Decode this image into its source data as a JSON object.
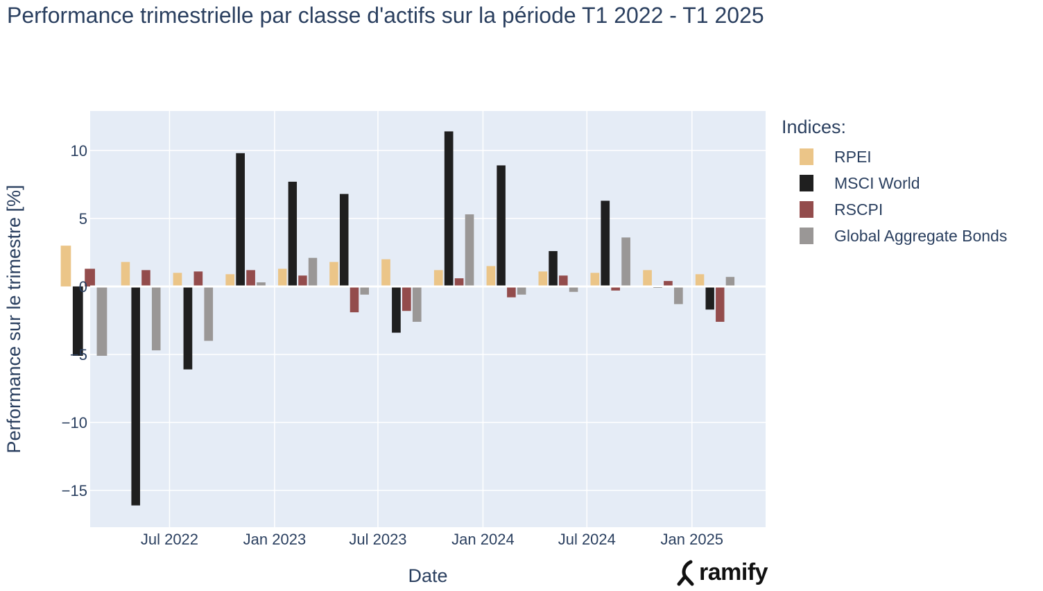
{
  "chart_data": {
    "type": "bar",
    "title": "Performance trimestrielle par classe d'actifs sur la période T1 2022 - T1 2025",
    "xlabel": "Date",
    "ylabel": "Performance sur le trimestre [%]",
    "ylim": [
      -17.7,
      12.9
    ],
    "yticks": [
      10,
      5,
      0,
      -5,
      -10,
      -15
    ],
    "ytick_labels": [
      "10",
      "5",
      "0",
      "−5",
      "−10",
      "−15"
    ],
    "xlim": [
      "2022-02-12",
      "2025-05-10"
    ],
    "xticks": [
      "2022-07-01",
      "2023-01-01",
      "2023-07-01",
      "2024-01-01",
      "2024-07-01",
      "2025-01-01"
    ],
    "xtick_labels": [
      "Jul 2022",
      "Jan 2023",
      "Jul 2023",
      "Jan 2024",
      "Jul 2024",
      "Jan 2025"
    ],
    "x": [
      "2022-03-31",
      "2022-06-30",
      "2022-09-30",
      "2022-12-31",
      "2023-03-31",
      "2023-06-30",
      "2023-09-30",
      "2023-12-31",
      "2024-03-31",
      "2024-06-30",
      "2024-09-30",
      "2024-12-31",
      "2025-03-31"
    ],
    "grid": true,
    "legend_title": "Indices:",
    "legend_position": "right",
    "series": [
      {
        "name": "RPEI",
        "color": "#ebc588",
        "values": [
          3.0,
          1.8,
          1.0,
          0.9,
          1.3,
          1.8,
          2.0,
          1.2,
          1.5,
          1.1,
          1.0,
          1.2,
          0.9
        ]
      },
      {
        "name": "MSCI World",
        "color": "#1f1f1f",
        "values": [
          -5.1,
          -16.1,
          -6.1,
          9.8,
          7.7,
          6.8,
          -3.4,
          11.4,
          8.9,
          2.6,
          6.3,
          -0.1,
          -1.7
        ]
      },
      {
        "name": "RSCPI",
        "color": "#934c4c",
        "values": [
          1.3,
          1.2,
          1.1,
          1.2,
          0.8,
          -1.9,
          -1.8,
          0.6,
          -0.8,
          0.8,
          -0.3,
          0.4,
          -2.6
        ]
      },
      {
        "name": "Global Aggregate Bonds",
        "color": "#9a9796",
        "values": [
          -5.1,
          -4.7,
          -4.0,
          0.3,
          2.1,
          -0.6,
          -2.6,
          5.3,
          -0.6,
          -0.4,
          3.6,
          -1.3,
          0.7
        ]
      }
    ]
  },
  "brand": {
    "name": "ramify"
  }
}
